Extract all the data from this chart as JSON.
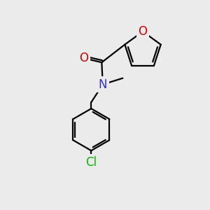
{
  "background_color": "#ebebeb",
  "atom_colors": {
    "C": "#000000",
    "N": "#3333cc",
    "O": "#cc0000",
    "Cl": "#00bb00"
  },
  "bond_color": "#000000",
  "bond_width": 1.6,
  "font_size_atoms": 12
}
